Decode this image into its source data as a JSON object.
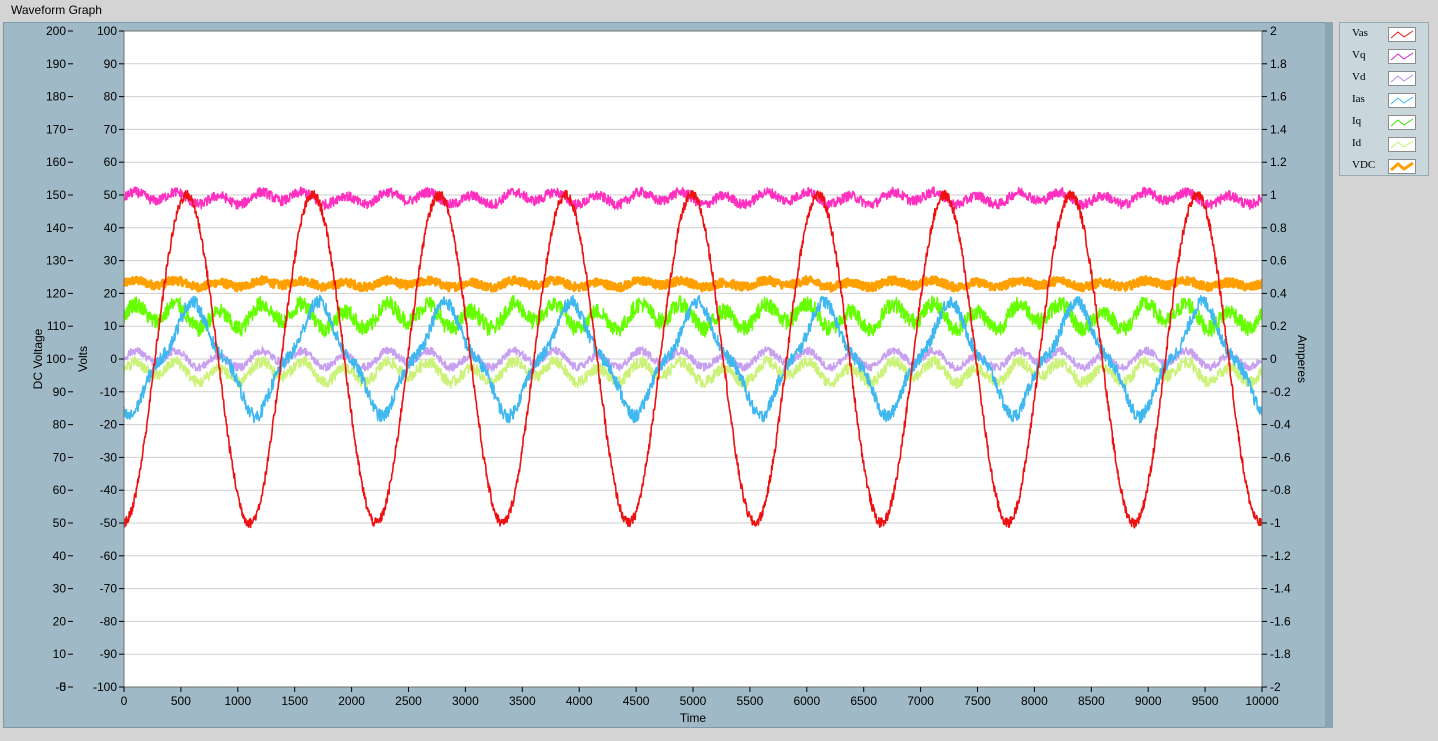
{
  "window": {
    "title": "Waveform Graph"
  },
  "colors": {
    "Vas": "#ee1111",
    "Vq": "#ff2fc0",
    "Vd": "#c8a0f0",
    "Ias": "#3fb8f0",
    "Iq": "#66ff00",
    "Id": "#ccf27a",
    "VDC": "#ffa000",
    "frame": "#9fb9c6",
    "grid": "#cfcfcf"
  },
  "chart_data": {
    "type": "line",
    "xlabel": "Time",
    "xlim": [
      0,
      10000
    ],
    "x_ticks": [
      "0",
      "500",
      "1000",
      "1500",
      "2000",
      "2500",
      "3000",
      "3500",
      "4000",
      "4500",
      "5000",
      "5500",
      "6000",
      "6500",
      "7000",
      "7500",
      "8000",
      "8500",
      "9000",
      "9500",
      "10000"
    ],
    "axes": {
      "dc_voltage": {
        "label": "DC Voltage",
        "range": [
          -5,
          200
        ],
        "ticks": [
          "200",
          "190",
          "180",
          "170",
          "160",
          "150",
          "140",
          "130",
          "120",
          "110",
          "100",
          "90",
          "80",
          "70",
          "60",
          "50",
          "40",
          "30",
          "20",
          "10",
          "0",
          "-5"
        ]
      },
      "volts": {
        "label": "Volts",
        "range": [
          -100,
          100
        ],
        "ticks": [
          "100",
          "90",
          "80",
          "70",
          "60",
          "50",
          "40",
          "30",
          "20",
          "10",
          "0",
          "-10",
          "-20",
          "-30",
          "-40",
          "-50",
          "-60",
          "-70",
          "-80",
          "-90",
          "-100"
        ]
      },
      "amperes": {
        "label": "Amperes",
        "range": [
          -2,
          2
        ],
        "ticks": [
          "2",
          "1.8",
          "1.6",
          "1.4",
          "1.2",
          "1",
          "0.8",
          "0.6",
          "0.4",
          "0.2",
          "0",
          "-0.2",
          "-0.4",
          "-0.6",
          "-0.8",
          "-1",
          "-1.2",
          "-1.4",
          "-1.6",
          "-1.8",
          "-2"
        ]
      }
    },
    "series": [
      {
        "name": "Vas",
        "axis": "volts",
        "shape": "sine",
        "amplitude": 50,
        "offset": 0,
        "period": 1110,
        "phase_peak_x": 550,
        "noise": 1.5
      },
      {
        "name": "Vq",
        "axis": "volts",
        "shape": "ripple",
        "mean": 49,
        "ripple": 1.5,
        "noise": 1.5
      },
      {
        "name": "Vd",
        "axis": "volts",
        "shape": "ripple",
        "mean": 0,
        "ripple": 2,
        "noise": 1.2
      },
      {
        "name": "Ias",
        "axis": "amperes",
        "shape": "distorted-sine",
        "amplitude": 0.35,
        "offset": 0,
        "period": 1110,
        "phase_peak_x": 600,
        "noise": 0.04
      },
      {
        "name": "Iq",
        "axis": "amperes",
        "shape": "ripple",
        "mean": 0.26,
        "ripple": 0.06,
        "noise": 0.05
      },
      {
        "name": "Id",
        "axis": "amperes",
        "shape": "ripple",
        "mean": -0.08,
        "ripple": 0.05,
        "noise": 0.035
      },
      {
        "name": "VDC",
        "axis": "dc_voltage",
        "shape": "ripple",
        "mean": 121,
        "ripple": 0.8,
        "noise": 1.3
      }
    ]
  },
  "legend": {
    "items": [
      {
        "label": "Vas"
      },
      {
        "label": "Vq"
      },
      {
        "label": "Vd"
      },
      {
        "label": "Ias"
      },
      {
        "label": "Iq"
      },
      {
        "label": "Id"
      },
      {
        "label": "VDC"
      }
    ]
  }
}
